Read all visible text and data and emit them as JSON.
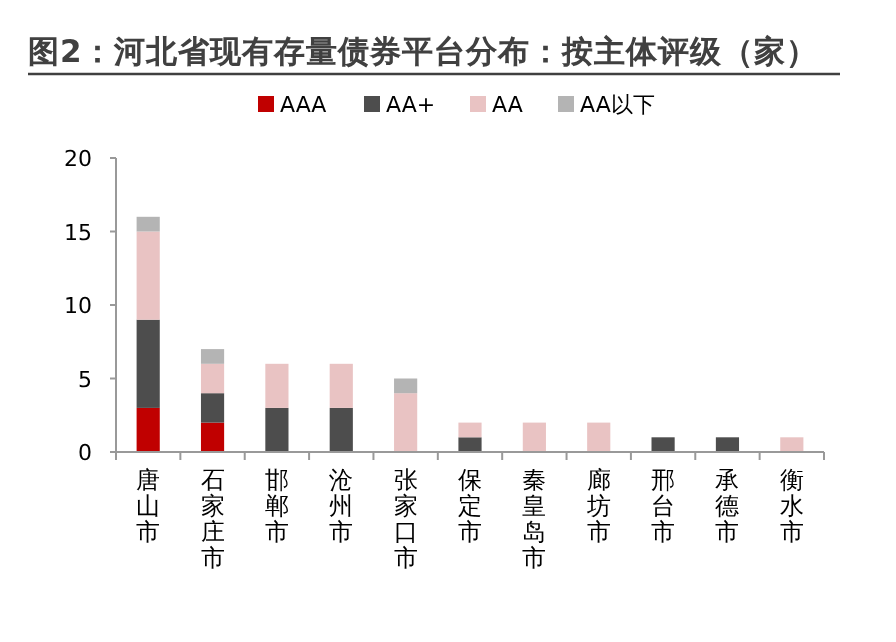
{
  "chart_data": {
    "type": "bar",
    "title": "图2：河北省现有存量债券平台分布：按主体评级（家）",
    "categories": [
      "唐山市",
      "石家庄市",
      "邯郸市",
      "沧州市",
      "张家口市",
      "保定市",
      "秦皇岛市",
      "廊坊市",
      "邢台市",
      "承德市",
      "衡水市"
    ],
    "stacked": true,
    "series": [
      {
        "name": "AAA",
        "color": "#c00000",
        "values": [
          3,
          2,
          0,
          0,
          0,
          0,
          0,
          0,
          0,
          0,
          0
        ]
      },
      {
        "name": "AA+",
        "color": "#4d4d4d",
        "values": [
          6,
          2,
          3,
          3,
          0,
          1,
          0,
          0,
          1,
          1,
          0
        ]
      },
      {
        "name": "AA",
        "color": "#e9c3c3",
        "values": [
          6,
          2,
          3,
          3,
          4,
          1,
          2,
          2,
          0,
          0,
          1
        ]
      },
      {
        "name": "AA以下",
        "color": "#b4b4b4",
        "values": [
          1,
          1,
          0,
          0,
          1,
          0,
          0,
          0,
          0,
          0,
          0
        ]
      }
    ],
    "ylim": [
      0,
      20
    ],
    "yticks": [
      0,
      5,
      10,
      15,
      20
    ],
    "grid": false,
    "legend": "top"
  }
}
